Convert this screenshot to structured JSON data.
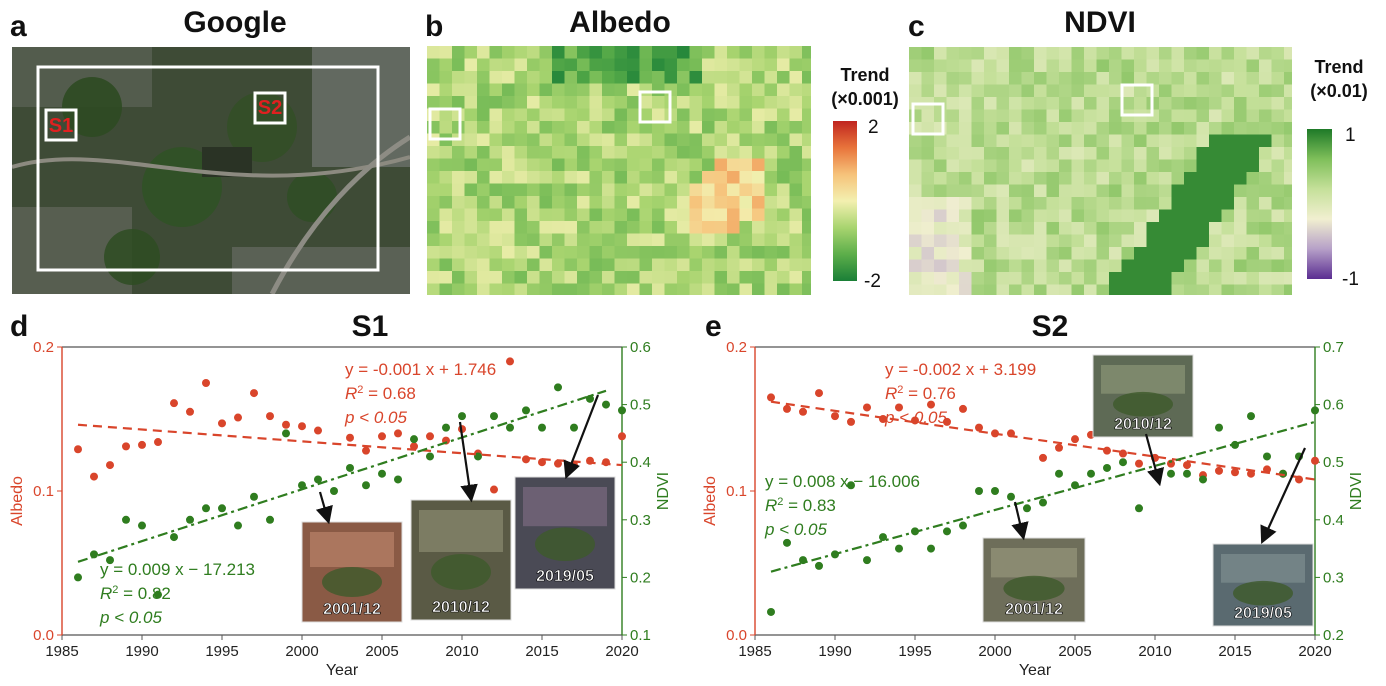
{
  "panels": {
    "a": {
      "label": "a",
      "title": "Google",
      "site1": "S1",
      "site2": "S2"
    },
    "b": {
      "label": "b",
      "title": "Albedo",
      "colorbar_title1": "Trend",
      "colorbar_title2": "(×0.001)",
      "colorbar_max": "2",
      "colorbar_min": "-2",
      "colors": [
        "#1a7f37",
        "#5cae4a",
        "#a8d46f",
        "#f3f0b0",
        "#f6c27a",
        "#e8743b",
        "#c0251f"
      ]
    },
    "c": {
      "label": "c",
      "title": "NDVI",
      "colorbar_title1": "Trend",
      "colorbar_title2": "(×0.01)",
      "colorbar_max": "1",
      "colorbar_min": "-1",
      "colors": [
        "#5a2d91",
        "#b6a0c8",
        "#f1efd0",
        "#c5e09a",
        "#7fbf5a",
        "#1e7a28"
      ]
    },
    "d": {
      "label": "d",
      "title": "S1"
    },
    "e": {
      "label": "e",
      "title": "S2"
    }
  },
  "chart_data": [
    {
      "type": "scatter",
      "title": "S1",
      "xlabel": "Year",
      "ylabel": "Albedo",
      "ylabel_right": "NDVI",
      "xlim": [
        1985,
        2020
      ],
      "ylim": [
        0.0,
        0.2
      ],
      "ylim_right": [
        0.1,
        0.6
      ],
      "xticks": [
        "1985",
        "1990",
        "1995",
        "2000",
        "2005",
        "2010",
        "2015",
        "2020"
      ],
      "yticks": [
        "0.0",
        "0.1",
        "0.2"
      ],
      "yticks_right": [
        "0.1",
        "0.2",
        "0.3",
        "0.4",
        "0.5",
        "0.6"
      ],
      "series": [
        {
          "name": "Albedo",
          "axis": "left",
          "color": "#d9452b",
          "x": [
            1986,
            1987,
            1988,
            1989,
            1990,
            1991,
            1992,
            1993,
            1994,
            1995,
            1996,
            1997,
            1998,
            1999,
            2000,
            2001,
            2003,
            2004,
            2005,
            2006,
            2007,
            2008,
            2009,
            2010,
            2011,
            2012,
            2013,
            2014,
            2015,
            2016,
            2017,
            2018,
            2019,
            2020
          ],
          "y": [
            0.129,
            0.11,
            0.118,
            0.131,
            0.132,
            0.134,
            0.161,
            0.155,
            0.175,
            0.147,
            0.151,
            0.168,
            0.152,
            0.146,
            0.145,
            0.142,
            0.137,
            0.128,
            0.138,
            0.14,
            0.131,
            0.138,
            0.135,
            0.143,
            0.126,
            0.101,
            0.19,
            0.122,
            0.12,
            0.119,
            0.118,
            0.121,
            0.12,
            0.138
          ]
        },
        {
          "name": "NDVI",
          "axis": "right",
          "color": "#2f7d1f",
          "x": [
            1986,
            1987,
            1988,
            1989,
            1990,
            1991,
            1992,
            1993,
            1994,
            1995,
            1996,
            1997,
            1998,
            1999,
            2000,
            2001,
            2002,
            2003,
            2004,
            2005,
            2006,
            2007,
            2008,
            2009,
            2010,
            2011,
            2012,
            2013,
            2014,
            2015,
            2016,
            2017,
            2018,
            2019,
            2020
          ],
          "y": [
            0.2,
            0.24,
            0.23,
            0.3,
            0.29,
            0.17,
            0.27,
            0.3,
            0.32,
            0.32,
            0.29,
            0.34,
            0.3,
            0.45,
            0.36,
            0.37,
            0.35,
            0.39,
            0.36,
            0.38,
            0.37,
            0.44,
            0.41,
            0.46,
            0.48,
            0.41,
            0.48,
            0.46,
            0.49,
            0.46,
            0.53,
            0.46,
            0.51,
            0.5,
            0.49
          ]
        }
      ],
      "fits": [
        {
          "series": "Albedo",
          "equation": "y = -0.001 x + 1.746",
          "r2_label": "R",
          "r2_value": "2 = 0.68",
          "p": "p < 0.05",
          "x0": 1986,
          "y0": 0.146,
          "x1": 2020,
          "y1": 0.118,
          "color": "#d9452b"
        },
        {
          "series": "NDVI",
          "equation": "y = 0.009 x − 17.213",
          "r2_label": "R",
          "r2_value": "2 = 0.82",
          "p": "p < 0.05",
          "x0": 1986,
          "y0": 0.227,
          "x1": 2019,
          "y1": 0.524,
          "color": "#2f7d1f"
        }
      ],
      "insets": [
        "2001/12",
        "2010/12",
        "2019/05"
      ]
    },
    {
      "type": "scatter",
      "title": "S2",
      "xlabel": "Year",
      "ylabel": "Albedo",
      "ylabel_right": "NDVI",
      "xlim": [
        1985,
        2020
      ],
      "ylim": [
        0.0,
        0.2
      ],
      "ylim_right": [
        0.2,
        0.7
      ],
      "xticks": [
        "1985",
        "1990",
        "1995",
        "2000",
        "2005",
        "2010",
        "2015",
        "2020"
      ],
      "yticks": [
        "0.0",
        "0.1",
        "0.2"
      ],
      "yticks_right": [
        "0.2",
        "0.3",
        "0.4",
        "0.5",
        "0.6",
        "0.7"
      ],
      "series": [
        {
          "name": "Albedo",
          "axis": "left",
          "color": "#d9452b",
          "x": [
            1986,
            1987,
            1988,
            1989,
            1990,
            1991,
            1992,
            1993,
            1994,
            1995,
            1996,
            1997,
            1998,
            1999,
            2000,
            2001,
            2003,
            2004,
            2005,
            2006,
            2007,
            2008,
            2009,
            2010,
            2011,
            2012,
            2013,
            2014,
            2015,
            2016,
            2017,
            2018,
            2019,
            2020
          ],
          "y": [
            0.165,
            0.157,
            0.155,
            0.168,
            0.152,
            0.148,
            0.158,
            0.15,
            0.158,
            0.149,
            0.16,
            0.148,
            0.157,
            0.144,
            0.14,
            0.14,
            0.123,
            0.13,
            0.136,
            0.139,
            0.128,
            0.126,
            0.119,
            0.123,
            0.119,
            0.118,
            0.111,
            0.114,
            0.113,
            0.112,
            0.115,
            0.112,
            0.108,
            0.121
          ]
        },
        {
          "name": "NDVI",
          "axis": "right",
          "color": "#2f7d1f",
          "x": [
            1986,
            1987,
            1988,
            1989,
            1990,
            1991,
            1992,
            1993,
            1994,
            1995,
            1996,
            1997,
            1998,
            1999,
            2000,
            2001,
            2002,
            2003,
            2004,
            2005,
            2006,
            2007,
            2008,
            2009,
            2010,
            2011,
            2012,
            2013,
            2014,
            2015,
            2016,
            2017,
            2018,
            2019,
            2020
          ],
          "y": [
            0.24,
            0.36,
            0.33,
            0.32,
            0.34,
            0.46,
            0.33,
            0.37,
            0.35,
            0.38,
            0.35,
            0.38,
            0.39,
            0.45,
            0.45,
            0.44,
            0.42,
            0.43,
            0.48,
            0.46,
            0.48,
            0.49,
            0.5,
            0.42,
            0.48,
            0.48,
            0.48,
            0.47,
            0.56,
            0.53,
            0.58,
            0.51,
            0.48,
            0.51,
            0.59
          ]
        }
      ],
      "fits": [
        {
          "series": "Albedo",
          "equation": "y = -0.002 x + 3.199",
          "r2_label": "R",
          "r2_value": "2 = 0.76",
          "p": "p < 0.05",
          "x0": 1986,
          "y0": 0.162,
          "x1": 2020,
          "y1": 0.108,
          "color": "#d9452b"
        },
        {
          "series": "NDVI",
          "equation": "y = 0.008 x − 16.006",
          "r2_label": "R",
          "r2_value": "2 = 0.83",
          "p": "p < 0.05",
          "x0": 1986,
          "y0": 0.31,
          "x1": 2020,
          "y1": 0.57,
          "color": "#2f7d1f"
        }
      ],
      "insets": [
        "2001/12",
        "2010/12",
        "2019/05"
      ]
    }
  ]
}
